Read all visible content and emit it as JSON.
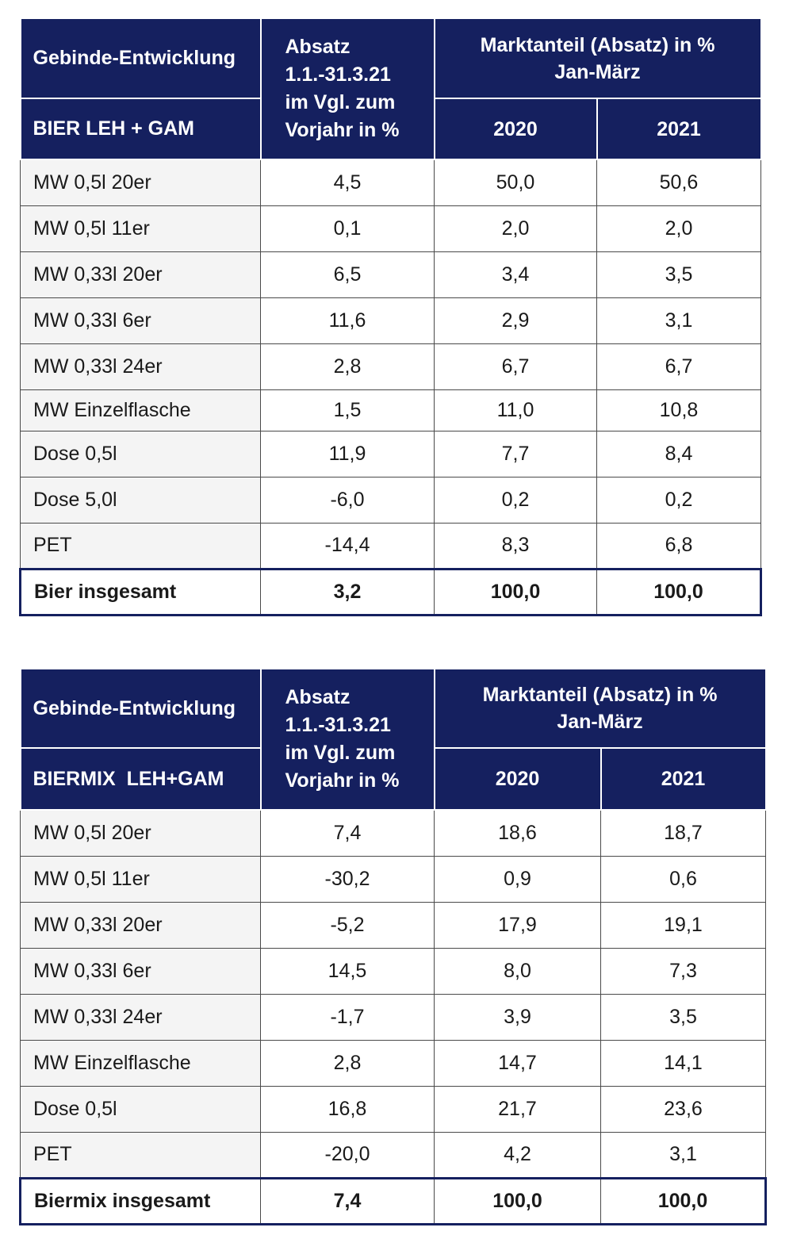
{
  "tables": [
    {
      "header": {
        "title": "Gebinde-Entwicklung",
        "subtitle": "BIER LEH + GAM",
        "absatz_lines": [
          "Absatz",
          "1.1.-31.3.21",
          "im Vgl. zum",
          "Vorjahr in %"
        ],
        "marktanteil_lines": [
          "Marktanteil (Absatz) in %",
          "Jan-März"
        ],
        "year1": "2020",
        "year2": "2021"
      },
      "rows": [
        {
          "label": "MW 0,5l 20er",
          "absatz": "4,5",
          "y2020": "50,0",
          "y2021": "50,6"
        },
        {
          "label": "MW 0,5l 11er",
          "absatz": "0,1",
          "y2020": "2,0",
          "y2021": "2,0"
        },
        {
          "label": "MW 0,33l 20er",
          "absatz": "6,5",
          "y2020": "3,4",
          "y2021": "3,5"
        },
        {
          "label": "MW 0,33l 6er",
          "absatz": "11,6",
          "y2020": "2,9",
          "y2021": "3,1"
        },
        {
          "label": "MW 0,33l 24er",
          "absatz": "2,8",
          "y2020": "6,7",
          "y2021": "6,7"
        },
        {
          "label": "MW Einzelflasche",
          "absatz": "1,5",
          "y2020": "11,0",
          "y2021": "10,8"
        },
        {
          "label": "Dose 0,5l",
          "absatz": "11,9",
          "y2020": "7,7",
          "y2021": "8,4"
        },
        {
          "label": "Dose 5,0l",
          "absatz": "-6,0",
          "y2020": "0,2",
          "y2021": "0,2"
        },
        {
          "label": "PET",
          "absatz": "-14,4",
          "y2020": "8,3",
          "y2021": "6,8"
        }
      ],
      "total": {
        "label": "Bier insgesamt",
        "absatz": "3,2",
        "y2020": "100,0",
        "y2021": "100,0"
      }
    },
    {
      "header": {
        "title": "Gebinde-Entwicklung",
        "subtitle": "BIERMIX  LEH+GAM",
        "absatz_lines": [
          "Absatz",
          "1.1.-31.3.21",
          "im Vgl. zum",
          "Vorjahr in %"
        ],
        "marktanteil_lines": [
          "Marktanteil (Absatz) in %",
          "Jan-März"
        ],
        "year1": "2020",
        "year2": "2021"
      },
      "rows": [
        {
          "label": "MW 0,5l 20er",
          "absatz": "7,4",
          "y2020": "18,6",
          "y2021": "18,7"
        },
        {
          "label": "MW 0,5l 11er",
          "absatz": "-30,2",
          "y2020": "0,9",
          "y2021": "0,6"
        },
        {
          "label": "MW 0,33l 20er",
          "absatz": "-5,2",
          "y2020": "17,9",
          "y2021": "19,1"
        },
        {
          "label": "MW 0,33l 6er",
          "absatz": "14,5",
          "y2020": "8,0",
          "y2021": "7,3"
        },
        {
          "label": "MW 0,33l 24er",
          "absatz": "-1,7",
          "y2020": "3,9",
          "y2021": "3,5"
        },
        {
          "label": "MW Einzelflasche",
          "absatz": "2,8",
          "y2020": "14,7",
          "y2021": "14,1"
        },
        {
          "label": "Dose 0,5l",
          "absatz": "16,8",
          "y2020": "21,7",
          "y2021": "23,6"
        },
        {
          "label": "PET",
          "absatz": "-20,0",
          "y2020": "4,2",
          "y2021": "3,1"
        }
      ],
      "total": {
        "label": "Biermix insgesamt",
        "absatz": "7,4",
        "y2020": "100,0",
        "y2021": "100,0"
      }
    }
  ]
}
